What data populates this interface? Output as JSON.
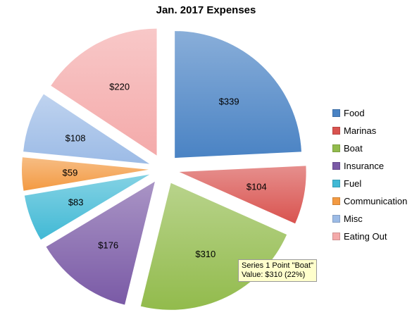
{
  "chart_data": {
    "type": "pie",
    "title": "Jan. 2017 Expenses",
    "categories": [
      "Food",
      "Marinas",
      "Boat",
      "Insurance",
      "Fuel",
      "Communication",
      "Misc",
      "Eating Out"
    ],
    "values": [
      339,
      104,
      310,
      176,
      83,
      59,
      108,
      220
    ],
    "data_labels": [
      "$339",
      "$104",
      "$310",
      "$176",
      "$83",
      "$59",
      "$108",
      "$220"
    ],
    "colors": [
      "#4a83c4",
      "#d9534f",
      "#92bb4c",
      "#7a5aa6",
      "#41b9d5",
      "#f39a42",
      "#9cbbe6",
      "#f4aaaa"
    ],
    "exploded": true,
    "legend_position": "right"
  },
  "tooltip": {
    "line1": "Series 1 Point \"Boat\"",
    "line2": "Value: $310 (22%)"
  }
}
